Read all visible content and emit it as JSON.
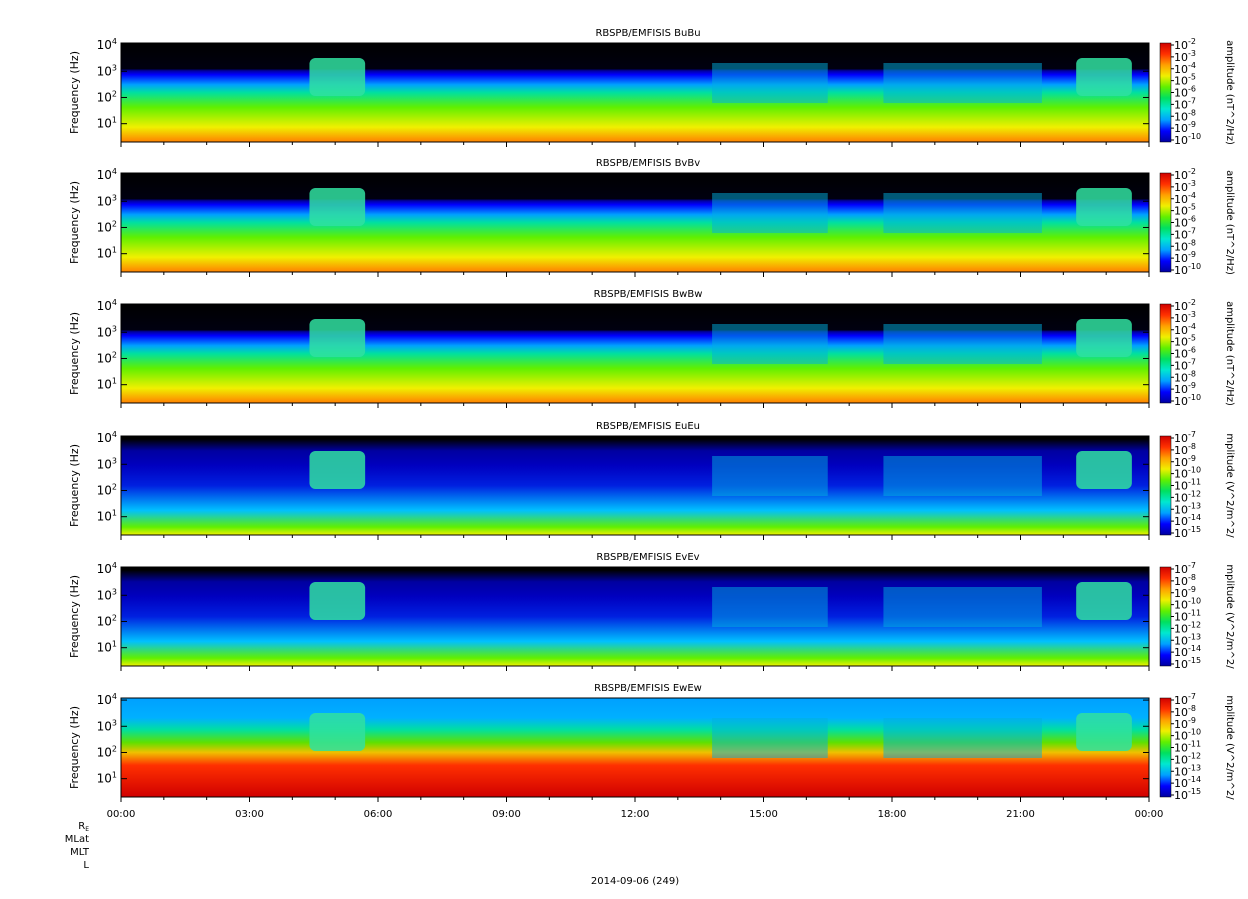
{
  "figure": {
    "footer_date": "2014-09-06 (249)",
    "orbit_labels": [
      "R",
      "MLat",
      "MLT",
      "L"
    ],
    "orbit_re_subscript": "E",
    "x_ticks": [
      "00:00",
      "03:00",
      "06:00",
      "09:00",
      "12:00",
      "15:00",
      "18:00",
      "21:00",
      "00:00"
    ]
  },
  "chart_data": [
    {
      "type": "heatmap",
      "title": "RBSPB/EMFISIS  BuBu",
      "ylabel": "Frequency (Hz)",
      "yscale": "log",
      "yticks": [
        {
          "base": "10",
          "exp": "1"
        },
        {
          "base": "10",
          "exp": "2"
        },
        {
          "base": "10",
          "exp": "3"
        },
        {
          "base": "10",
          "exp": "4"
        }
      ],
      "ylim": [
        2,
        12000
      ],
      "xlabel": "",
      "colorbar": {
        "label": "amplitude (nT^2/Hz)",
        "scale": "log",
        "ticks": [
          {
            "base": "10",
            "exp": "-2"
          },
          {
            "base": "10",
            "exp": "-3"
          },
          {
            "base": "10",
            "exp": "-4"
          },
          {
            "base": "10",
            "exp": "-5"
          },
          {
            "base": "10",
            "exp": "-6"
          },
          {
            "base": "10",
            "exp": "-7"
          },
          {
            "base": "10",
            "exp": "-8"
          },
          {
            "base": "10",
            "exp": "-9"
          },
          {
            "base": "10",
            "exp": "-10"
          }
        ]
      }
    },
    {
      "type": "heatmap",
      "title": "RBSPB/EMFISIS  BvBv",
      "ylabel": "Frequency (Hz)",
      "yscale": "log",
      "yticks": [
        {
          "base": "10",
          "exp": "1"
        },
        {
          "base": "10",
          "exp": "2"
        },
        {
          "base": "10",
          "exp": "3"
        },
        {
          "base": "10",
          "exp": "4"
        }
      ],
      "ylim": [
        2,
        12000
      ],
      "xlabel": "",
      "colorbar": {
        "label": "amplitude (nT^2/Hz)",
        "scale": "log",
        "ticks": [
          {
            "base": "10",
            "exp": "-2"
          },
          {
            "base": "10",
            "exp": "-3"
          },
          {
            "base": "10",
            "exp": "-4"
          },
          {
            "base": "10",
            "exp": "-5"
          },
          {
            "base": "10",
            "exp": "-6"
          },
          {
            "base": "10",
            "exp": "-7"
          },
          {
            "base": "10",
            "exp": "-8"
          },
          {
            "base": "10",
            "exp": "-9"
          },
          {
            "base": "10",
            "exp": "-10"
          }
        ]
      }
    },
    {
      "type": "heatmap",
      "title": "RBSPB/EMFISIS  BwBw",
      "ylabel": "Frequency (Hz)",
      "yscale": "log",
      "yticks": [
        {
          "base": "10",
          "exp": "1"
        },
        {
          "base": "10",
          "exp": "2"
        },
        {
          "base": "10",
          "exp": "3"
        },
        {
          "base": "10",
          "exp": "4"
        }
      ],
      "ylim": [
        2,
        12000
      ],
      "xlabel": "",
      "colorbar": {
        "label": "amplitude (nT^2/Hz)",
        "scale": "log",
        "ticks": [
          {
            "base": "10",
            "exp": "-2"
          },
          {
            "base": "10",
            "exp": "-3"
          },
          {
            "base": "10",
            "exp": "-4"
          },
          {
            "base": "10",
            "exp": "-5"
          },
          {
            "base": "10",
            "exp": "-6"
          },
          {
            "base": "10",
            "exp": "-7"
          },
          {
            "base": "10",
            "exp": "-8"
          },
          {
            "base": "10",
            "exp": "-9"
          },
          {
            "base": "10",
            "exp": "-10"
          }
        ]
      }
    },
    {
      "type": "heatmap",
      "title": "RBSPB/EMFISIS  EuEu",
      "ylabel": "Frequency (Hz)",
      "yscale": "log",
      "yticks": [
        {
          "base": "10",
          "exp": "1"
        },
        {
          "base": "10",
          "exp": "2"
        },
        {
          "base": "10",
          "exp": "3"
        },
        {
          "base": "10",
          "exp": "4"
        }
      ],
      "ylim": [
        2,
        12000
      ],
      "xlabel": "",
      "colorbar": {
        "label": "mplitude (V^2/m^2/",
        "scale": "log",
        "ticks": [
          {
            "base": "10",
            "exp": "-7"
          },
          {
            "base": "10",
            "exp": "-8"
          },
          {
            "base": "10",
            "exp": "-9"
          },
          {
            "base": "10",
            "exp": "-10"
          },
          {
            "base": "10",
            "exp": "-11"
          },
          {
            "base": "10",
            "exp": "-12"
          },
          {
            "base": "10",
            "exp": "-13"
          },
          {
            "base": "10",
            "exp": "-14"
          },
          {
            "base": "10",
            "exp": "-15"
          }
        ]
      }
    },
    {
      "type": "heatmap",
      "title": "RBSPB/EMFISIS  EvEv",
      "ylabel": "Frequency (Hz)",
      "yscale": "log",
      "yticks": [
        {
          "base": "10",
          "exp": "1"
        },
        {
          "base": "10",
          "exp": "2"
        },
        {
          "base": "10",
          "exp": "3"
        },
        {
          "base": "10",
          "exp": "4"
        }
      ],
      "ylim": [
        2,
        12000
      ],
      "xlabel": "",
      "colorbar": {
        "label": "mplitude (V^2/m^2/",
        "scale": "log",
        "ticks": [
          {
            "base": "10",
            "exp": "-7"
          },
          {
            "base": "10",
            "exp": "-8"
          },
          {
            "base": "10",
            "exp": "-9"
          },
          {
            "base": "10",
            "exp": "-10"
          },
          {
            "base": "10",
            "exp": "-11"
          },
          {
            "base": "10",
            "exp": "-12"
          },
          {
            "base": "10",
            "exp": "-13"
          },
          {
            "base": "10",
            "exp": "-14"
          },
          {
            "base": "10",
            "exp": "-15"
          }
        ]
      }
    },
    {
      "type": "heatmap",
      "title": "RBSPB/EMFISIS  EwEw",
      "ylabel": "Frequency (Hz)",
      "yscale": "log",
      "yticks": [
        {
          "base": "10",
          "exp": "1"
        },
        {
          "base": "10",
          "exp": "2"
        },
        {
          "base": "10",
          "exp": "3"
        },
        {
          "base": "10",
          "exp": "4"
        }
      ],
      "ylim": [
        2,
        12000
      ],
      "xlabel": "",
      "colorbar": {
        "label": "mplitude (V^2/m^2/",
        "scale": "log",
        "ticks": [
          {
            "base": "10",
            "exp": "-7"
          },
          {
            "base": "10",
            "exp": "-8"
          },
          {
            "base": "10",
            "exp": "-9"
          },
          {
            "base": "10",
            "exp": "-10"
          },
          {
            "base": "10",
            "exp": "-11"
          },
          {
            "base": "10",
            "exp": "-12"
          },
          {
            "base": "10",
            "exp": "-13"
          },
          {
            "base": "10",
            "exp": "-14"
          },
          {
            "base": "10",
            "exp": "-15"
          }
        ]
      }
    }
  ],
  "colors": {
    "colormap": [
      "#0000a0",
      "#0000ff",
      "#00a0ff",
      "#00e8d0",
      "#00e060",
      "#60f000",
      "#f0f000",
      "#ffa000",
      "#ff3000",
      "#d00000"
    ],
    "background": "#000000",
    "axis": "#000000"
  }
}
